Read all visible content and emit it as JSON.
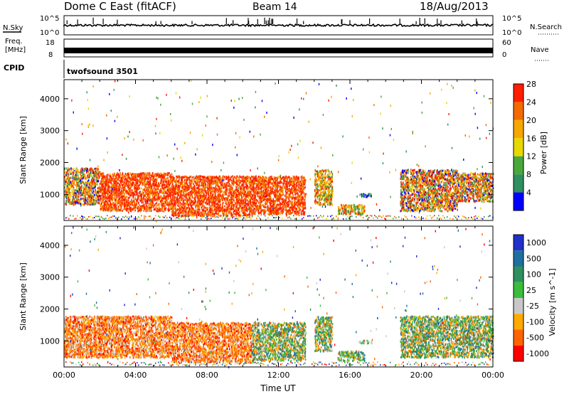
{
  "header": {
    "title": "Dome C East (fitACF)",
    "beam": "Beam 14",
    "date": "18/Aug/2013"
  },
  "strips": {
    "nsky": {
      "label": "N.Sky",
      "tick_top": "10^5",
      "tick_bottom": "10^0"
    },
    "nsearch": {
      "label": "N.Search",
      "tick_top": "10^5",
      "tick_bottom": "10^0"
    },
    "freq": {
      "label_line1": "Freq.",
      "label_line2": "[MHz]",
      "tick_top": "18",
      "tick_bottom": "8"
    },
    "nave": {
      "label": "Nave",
      "tick_top": "60",
      "tick_bottom": "0"
    },
    "cpid": {
      "label": "CPID",
      "value": "twofsound 3501"
    }
  },
  "colors": {
    "power": [
      "#0000ff",
      "#2f8f5f",
      "#4aa83a",
      "#e8d800",
      "#f7a800",
      "#f46a00",
      "#ff1f00"
    ],
    "velocity": [
      "#ff0000",
      "#ff6400",
      "#ffaa00",
      "#c8c8c8",
      "#3cbc3c",
      "#2f8f5f",
      "#1f6f9f",
      "#2030c8"
    ]
  },
  "chart_data": [
    {
      "type": "heatmap",
      "name": "power",
      "xlabel": "",
      "ylabel": "Slant Range [km]",
      "y_ticks": [
        "1000",
        "2000",
        "3000",
        "4000"
      ],
      "x_range": [
        0,
        24
      ],
      "y_range": [
        180,
        4600
      ],
      "colorbar": {
        "label": "Power [dB]",
        "ticks": [
          "4",
          "8",
          "12",
          "16",
          "20",
          "24",
          "28"
        ]
      },
      "regions": [
        {
          "x": [
            0.0,
            2.0
          ],
          "y": [
            700,
            1850
          ],
          "level": "mixed-high"
        },
        {
          "x": [
            2.0,
            6.0
          ],
          "y": [
            500,
            1700
          ],
          "level": "high"
        },
        {
          "x": [
            6.0,
            10.5
          ],
          "y": [
            350,
            1600
          ],
          "level": "high"
        },
        {
          "x": [
            10.5,
            13.5
          ],
          "y": [
            400,
            1600
          ],
          "level": "high"
        },
        {
          "x": [
            14.0,
            15.0
          ],
          "y": [
            700,
            1800
          ],
          "level": "mid"
        },
        {
          "x": [
            15.3,
            16.8
          ],
          "y": [
            400,
            700
          ],
          "level": "mid"
        },
        {
          "x": [
            16.5,
            17.2
          ],
          "y": [
            950,
            1050
          ],
          "level": "low"
        },
        {
          "x": [
            18.8,
            22.0
          ],
          "y": [
            500,
            1800
          ],
          "level": "mixed"
        },
        {
          "x": [
            22.0,
            24.0
          ],
          "y": [
            800,
            1700
          ],
          "level": "mixed"
        }
      ]
    },
    {
      "type": "heatmap",
      "name": "velocity",
      "xlabel": "Time UT",
      "ylabel": "Slant Range [km]",
      "x_ticks": [
        "00:00",
        "04:00",
        "08:00",
        "12:00",
        "16:00",
        "20:00",
        "00:00"
      ],
      "y_ticks": [
        "1000",
        "2000",
        "3000",
        "4000"
      ],
      "x_range": [
        0,
        24
      ],
      "y_range": [
        180,
        4600
      ],
      "colorbar": {
        "label": "Velocity [m s^-1]",
        "ticks": [
          "1000",
          "500",
          "100",
          "25",
          "-25",
          "-100",
          "-500",
          "-1000"
        ]
      },
      "regions": [
        {
          "x": [
            0.0,
            6.0
          ],
          "y": [
            500,
            1800
          ],
          "level": "negative"
        },
        {
          "x": [
            6.0,
            10.5
          ],
          "y": [
            350,
            1600
          ],
          "level": "negative"
        },
        {
          "x": [
            10.5,
            13.5
          ],
          "y": [
            400,
            1600
          ],
          "level": "mixed"
        },
        {
          "x": [
            14.0,
            15.0
          ],
          "y": [
            700,
            1800
          ],
          "level": "mixed"
        },
        {
          "x": [
            15.3,
            16.8
          ],
          "y": [
            400,
            700
          ],
          "level": "mixed"
        },
        {
          "x": [
            16.5,
            17.2
          ],
          "y": [
            950,
            1050
          ],
          "level": "near-zero"
        },
        {
          "x": [
            18.8,
            24.0
          ],
          "y": [
            500,
            1800
          ],
          "level": "mixed"
        }
      ]
    }
  ]
}
